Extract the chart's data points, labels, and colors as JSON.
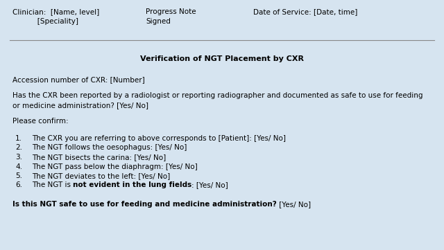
{
  "bg_color": "#d6e4f0",
  "fig_width": 6.4,
  "fig_height": 3.61,
  "font_size": 7.5,
  "title": "Verification of NGT Placement by CXR",
  "accession": "Accession number of CXR: [Number]",
  "question1_line1": "Has the CXR been reported by a radiologist or reporting radiographer and documented as safe to use for feeding",
  "question1_line2": "or medicine administration? [Yes/ No]",
  "please_confirm": "Please confirm:",
  "items_normal": [
    "The CXR you are referring to above corresponds to [Patient]: [Yes/ No]",
    "The NGT follows the oesophagus: [Yes/ No]",
    "The NGT bisects the carina: [Yes/ No]",
    "The NGT pass below the diaphragm: [Yes/ No]",
    "The NGT deviates to the left: [Yes/ No]"
  ],
  "item6_before": "The NGT is ",
  "item6_bold": "not evident in the lung fields",
  "item6_after": ": [Yes/ No]",
  "final_bold": "Is this NGT safe to use for feeding and medicine administration?",
  "final_normal": " [Yes/ No]",
  "header_col1_line1": "Clinician:  [Name, level]",
  "header_col1_line2": "           [Speciality]",
  "header_col2_line1": "Progress Note",
  "header_col2_line2": "Signed",
  "header_col3_line1": "Date of Service: [Date, time]"
}
